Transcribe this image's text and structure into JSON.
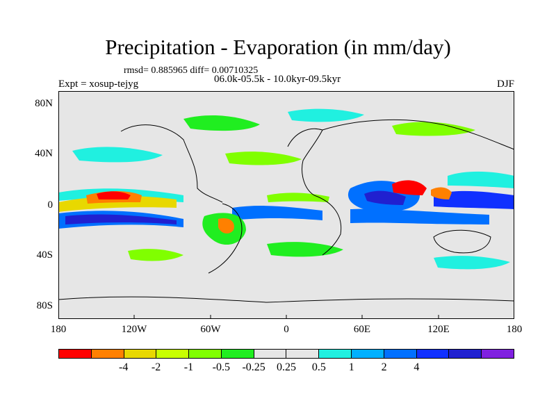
{
  "figure": {
    "title": "Precipitation - Evaporation (in mm/day)",
    "stats": "rmsd= 0.885965 diff= 0.00710325",
    "periods": "06.0k-05.5k - 10.0kyr-09.5kyr",
    "experiment": "Expt = xosup-tejyg",
    "season": "DJF"
  },
  "axes": {
    "y_ticks": [
      "80N",
      "40N",
      "0",
      "40S",
      "80S"
    ],
    "x_ticks": [
      "180",
      "120W",
      "60W",
      "0",
      "60E",
      "120E",
      "180"
    ]
  },
  "colorbar": {
    "colors": [
      "#ff0000",
      "#ff8000",
      "#e8d800",
      "#c8ff00",
      "#80ff00",
      "#20ee20",
      "#e6e6e6",
      "#e6e6e6",
      "#20f0e0",
      "#00b0ff",
      "#0070ff",
      "#1030ff",
      "#2020d0",
      "#8020e0"
    ],
    "labels": [
      "-4",
      "-2",
      "-1",
      "-0.5",
      "-0.25",
      "0.25",
      "0.5",
      "1",
      "2",
      "4"
    ]
  },
  "map": {
    "background": "#e6e6e6",
    "projection": "cylindrical equidistant",
    "lon_range": [
      -180,
      180
    ],
    "lat_range": [
      -90,
      90
    ]
  }
}
